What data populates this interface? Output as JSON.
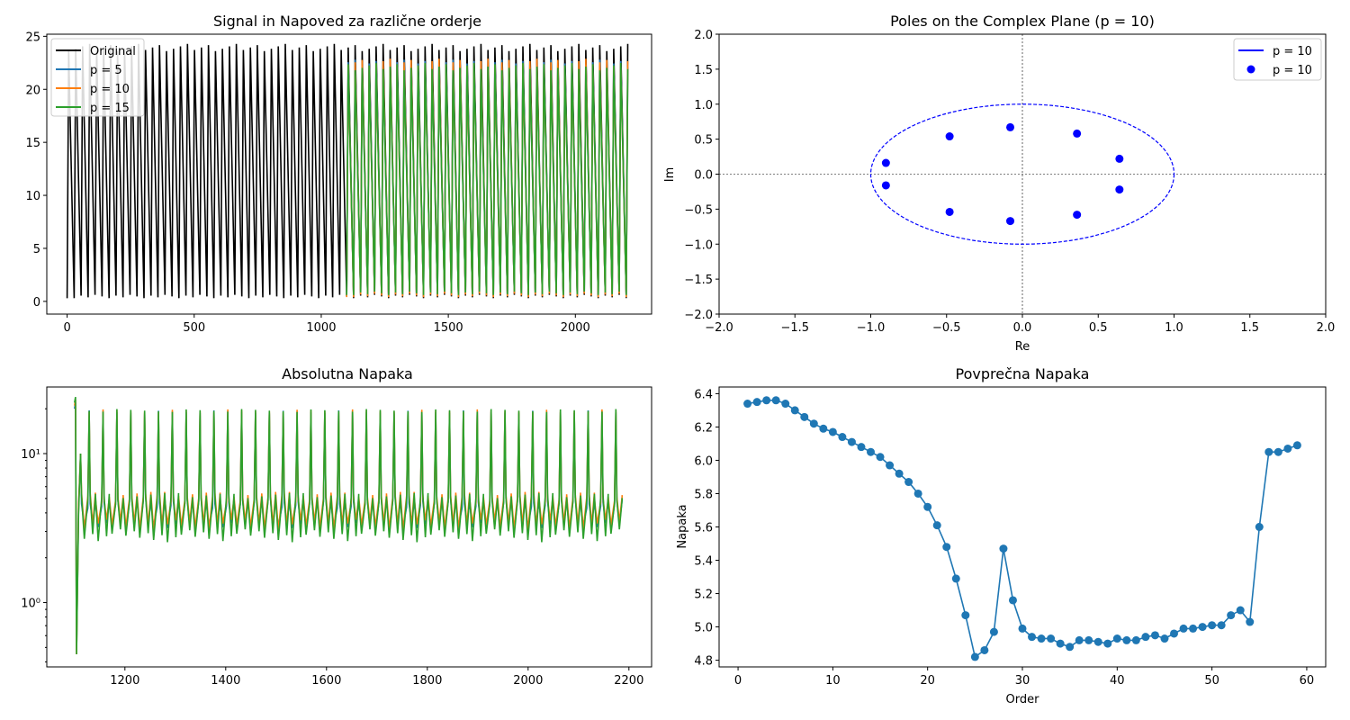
{
  "chart_data": [
    {
      "type": "line",
      "title": "Signal in Napoved za različne orderje",
      "xlabel": "",
      "ylabel": "",
      "xlim": [
        -80,
        2300
      ],
      "ylim": [
        -1.2,
        25.2
      ],
      "xticks": [
        0,
        500,
        1000,
        1500,
        2000
      ],
      "yticks": [
        0,
        5,
        10,
        15,
        20,
        25
      ],
      "legend_position": "top-left",
      "series": [
        {
          "name": "Original",
          "color": "#000000",
          "x_start": 0,
          "x_end": 2200,
          "period": 27.5,
          "peak": 24,
          "trough": 0.3
        },
        {
          "name": "p = 5",
          "color": "#1f77b4",
          "x_start": 1100,
          "x_end": 2200,
          "period": 27.5,
          "peak": 22.5,
          "trough": 0.5
        },
        {
          "name": "p = 10",
          "color": "#ff7f0e",
          "x_start": 1100,
          "x_end": 2200,
          "period": 27.5,
          "peak": 22.6,
          "trough": 0.4
        },
        {
          "name": "p = 15",
          "color": "#2ca02c",
          "x_start": 1100,
          "x_end": 2200,
          "period": 27.5,
          "peak": 22.2,
          "trough": 0.6
        }
      ]
    },
    {
      "type": "scatter",
      "title": "Poles on the Complex Plane (p = 10)",
      "xlabel": "Re",
      "ylabel": "Im",
      "xlim": [
        -2.0,
        2.0
      ],
      "ylim": [
        -2.0,
        2.0
      ],
      "xticks": [
        -2.0,
        -1.5,
        -1.0,
        -0.5,
        0.0,
        0.5,
        1.0,
        1.5,
        2.0
      ],
      "yticks": [
        -2.0,
        -1.5,
        -1.0,
        -0.5,
        0.0,
        0.5,
        1.0,
        1.5,
        2.0
      ],
      "legend_position": "top-right",
      "unit_circle": {
        "name": "p = 10",
        "color": "#0000ff",
        "radius": 1.0
      },
      "poles": {
        "name": "p = 10",
        "color": "#0000ff",
        "points": [
          [
            -0.9,
            0.16
          ],
          [
            -0.9,
            -0.16
          ],
          [
            -0.48,
            0.54
          ],
          [
            -0.48,
            -0.54
          ],
          [
            -0.08,
            0.67
          ],
          [
            -0.08,
            -0.67
          ],
          [
            0.36,
            0.58
          ],
          [
            0.36,
            -0.58
          ],
          [
            0.64,
            0.22
          ],
          [
            0.64,
            -0.22
          ]
        ]
      }
    },
    {
      "type": "line",
      "title": "Absolutna Napaka",
      "xlabel": "",
      "ylabel": "",
      "yscale": "log",
      "xlim": [
        1045,
        2245
      ],
      "ylim": [
        0.37,
        28
      ],
      "xticks": [
        1200,
        1400,
        1600,
        1800,
        2000,
        2200
      ],
      "yticks": [
        1,
        10
      ],
      "ytick_labels": [
        "10⁰",
        "10¹"
      ],
      "series": [
        {
          "name": "p = 5",
          "color": "#1f77b4",
          "x_start": 1100,
          "x_end": 2190,
          "period": 27.5,
          "spike": 19.5,
          "low": 3.3,
          "high": 4.6
        },
        {
          "name": "p = 10",
          "color": "#ff7f0e",
          "x_start": 1100,
          "x_end": 2190,
          "period": 27.5,
          "spike": 19.8,
          "low": 3.4,
          "high": 5.0
        },
        {
          "name": "p = 15",
          "color": "#2ca02c",
          "x_start": 1100,
          "x_end": 2190,
          "period": 27.5,
          "spike": 19.9,
          "low": 2.9,
          "high": 4.9
        }
      ]
    },
    {
      "type": "line",
      "title": "Povprečna Napaka",
      "xlabel": "Order",
      "ylabel": "Napaka",
      "xlim": [
        -2,
        62
      ],
      "ylim": [
        4.76,
        6.44
      ],
      "xticks": [
        0,
        10,
        20,
        30,
        40,
        50,
        60
      ],
      "yticks": [
        4.8,
        5.0,
        5.2,
        5.4,
        5.6,
        5.8,
        6.0,
        6.2,
        6.4
      ],
      "series": [
        {
          "name": "",
          "color": "#1f77b4",
          "x": [
            1,
            2,
            3,
            4,
            5,
            6,
            7,
            8,
            9,
            10,
            11,
            12,
            13,
            14,
            15,
            16,
            17,
            18,
            19,
            20,
            21,
            22,
            23,
            24,
            25,
            26,
            27,
            28,
            29,
            30,
            31,
            32,
            33,
            34,
            35,
            36,
            37,
            38,
            39,
            40,
            41,
            42,
            43,
            44,
            45,
            46,
            47,
            48,
            49,
            50,
            51,
            52,
            53,
            54,
            55,
            56,
            57,
            58,
            59
          ],
          "values": [
            6.34,
            6.35,
            6.36,
            6.36,
            6.34,
            6.3,
            6.26,
            6.22,
            6.19,
            6.17,
            6.14,
            6.11,
            6.08,
            6.05,
            6.02,
            5.97,
            5.92,
            5.87,
            5.8,
            5.72,
            5.61,
            5.48,
            5.29,
            5.07,
            4.82,
            4.86,
            4.97,
            5.47,
            5.16,
            4.99,
            4.94,
            4.93,
            4.93,
            4.9,
            4.88,
            4.92,
            4.92,
            4.91,
            4.9,
            4.93,
            4.92,
            4.92,
            4.94,
            4.95,
            4.93,
            4.96,
            4.99,
            4.99,
            5.0,
            5.01,
            5.01,
            5.07,
            5.1,
            5.03,
            5.6,
            6.05,
            6.05,
            6.07,
            6.09
          ]
        }
      ]
    }
  ]
}
